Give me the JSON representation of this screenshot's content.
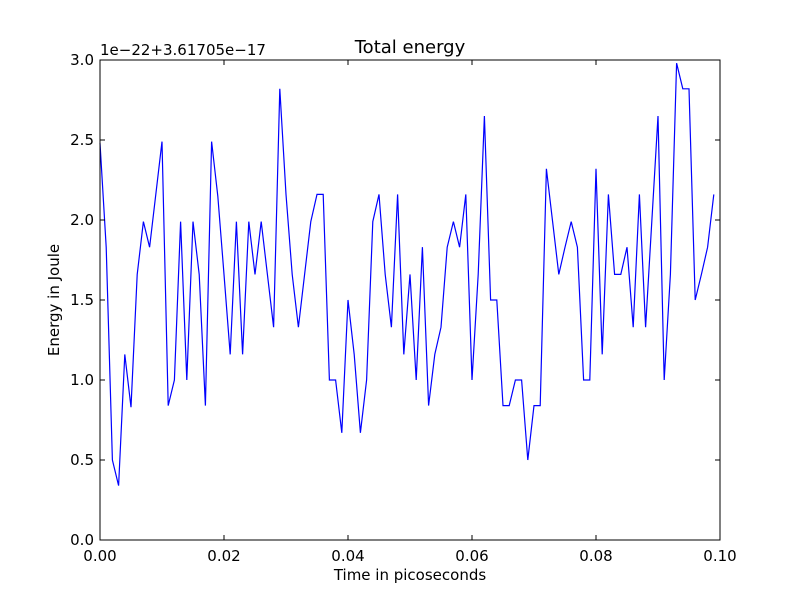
{
  "chart_data": {
    "type": "line",
    "title": "Total energy",
    "xlabel": "Time in picoseconds",
    "ylabel": "Energy in Joule",
    "y_offset_label": "1e−22+3.61705e−17",
    "xlim": [
      0.0,
      0.1
    ],
    "ylim": [
      0.0,
      3.0
    ],
    "grid": false,
    "x_ticks": [
      "0.00",
      "0.02",
      "0.04",
      "0.06",
      "0.08",
      "0.10"
    ],
    "y_ticks": [
      "0.0",
      "0.5",
      "1.0",
      "1.5",
      "2.0",
      "2.5",
      "3.0"
    ],
    "series": [
      {
        "color": "#0000ff",
        "x": [
          0.0,
          0.001,
          0.002,
          0.003,
          0.004,
          0.005,
          0.006,
          0.007,
          0.008,
          0.009,
          0.01,
          0.011,
          0.012,
          0.013,
          0.014,
          0.015,
          0.016,
          0.017,
          0.018,
          0.019,
          0.02,
          0.021,
          0.022,
          0.023,
          0.024,
          0.025,
          0.026,
          0.027,
          0.028,
          0.029,
          0.03,
          0.031,
          0.032,
          0.033,
          0.034,
          0.035,
          0.036,
          0.037,
          0.038,
          0.039,
          0.04,
          0.041,
          0.042,
          0.043,
          0.044,
          0.045,
          0.046,
          0.047,
          0.048,
          0.049,
          0.05,
          0.051,
          0.052,
          0.053,
          0.054,
          0.055,
          0.056,
          0.057,
          0.058,
          0.059,
          0.06,
          0.061,
          0.062,
          0.063,
          0.064,
          0.065,
          0.066,
          0.067,
          0.068,
          0.069,
          0.07,
          0.071,
          0.072,
          0.073,
          0.074,
          0.075,
          0.076,
          0.077,
          0.078,
          0.079,
          0.08,
          0.081,
          0.082,
          0.083,
          0.084,
          0.085,
          0.086,
          0.087,
          0.088,
          0.089,
          0.09,
          0.091,
          0.092,
          0.093,
          0.094,
          0.095,
          0.096,
          0.097,
          0.098,
          0.099
        ],
        "y": [
          2.48,
          1.83,
          0.5,
          0.34,
          1.16,
          0.83,
          1.66,
          1.99,
          1.83,
          2.16,
          2.49,
          0.84,
          1.0,
          1.99,
          1.0,
          1.99,
          1.66,
          0.84,
          2.49,
          2.15,
          1.66,
          1.16,
          1.99,
          1.16,
          1.99,
          1.66,
          1.99,
          1.66,
          1.33,
          2.82,
          2.16,
          1.66,
          1.33,
          1.66,
          1.99,
          2.16,
          2.16,
          1.0,
          1.0,
          0.67,
          1.5,
          1.16,
          0.67,
          1.0,
          1.99,
          2.16,
          1.66,
          1.33,
          2.16,
          1.16,
          1.66,
          1.0,
          1.83,
          0.84,
          1.16,
          1.33,
          1.83,
          1.99,
          1.83,
          2.16,
          1.0,
          1.66,
          2.65,
          1.5,
          1.5,
          0.84,
          0.84,
          1.0,
          1.0,
          0.5,
          0.84,
          0.84,
          2.32,
          1.99,
          1.66,
          1.83,
          1.99,
          1.83,
          1.0,
          1.0,
          2.32,
          1.16,
          2.16,
          1.66,
          1.66,
          1.83,
          1.33,
          2.16,
          1.33,
          1.99,
          2.65,
          1.0,
          1.66,
          2.98,
          2.82,
          2.82,
          1.5,
          1.66,
          1.83,
          2.16
        ]
      }
    ]
  }
}
